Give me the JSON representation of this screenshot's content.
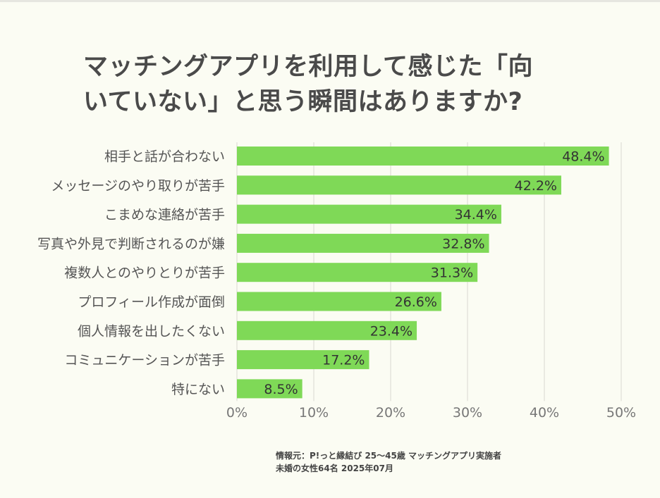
{
  "title_lines": [
    "マッチングアプリを利用して感じた「向",
    "いていない」と思う瞬間はありますか?"
  ],
  "source_lines": [
    "情報元：P!っと縁結び 25〜45歳 マッチングアプリ実施者",
    "未婚の女性64名 2025年07月"
  ],
  "colors": {
    "bar": "#7fd957",
    "background": "#fbfcf3",
    "text": "#4a4a4a",
    "grid": "#d9d9d2",
    "axis_text": "#777777"
  },
  "chart_data": {
    "type": "bar",
    "orientation": "horizontal",
    "categories": [
      "相手と話が合わない",
      "メッセージのやり取りが苦手",
      "こまめな連絡が苦手",
      "写真や外見で判断されるのが嫌",
      "複数人とのやりとりが苦手",
      "プロフィール作成が面倒",
      "個人情報を出したくない",
      "コミュニケーションが苦手",
      "特にない"
    ],
    "values": [
      48.4,
      42.2,
      34.4,
      32.8,
      31.3,
      26.6,
      23.4,
      17.2,
      8.5
    ],
    "value_labels": [
      "48.4%",
      "42.2%",
      "34.4%",
      "32.8%",
      "31.3%",
      "26.6%",
      "23.4%",
      "17.2%",
      "8.5%"
    ],
    "xlim": [
      0,
      50
    ],
    "xticks": [
      0,
      10,
      20,
      30,
      40,
      50
    ],
    "xtick_labels": [
      "0%",
      "10%",
      "20%",
      "30%",
      "40%",
      "50%"
    ],
    "grid": true,
    "legend": "none"
  }
}
